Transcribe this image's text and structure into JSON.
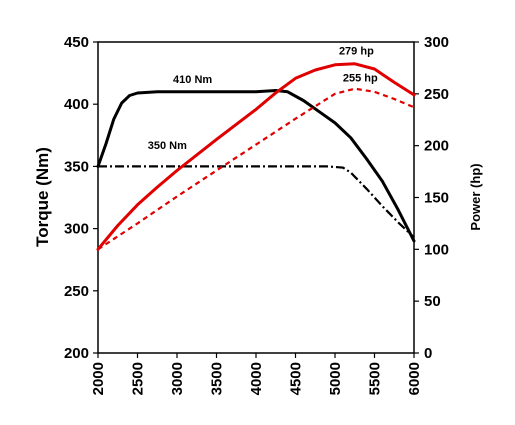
{
  "chart_data": {
    "type": "line",
    "xlabel": "",
    "x_ticks": [
      2000,
      2500,
      3000,
      3500,
      4000,
      4500,
      5000,
      5500,
      6000
    ],
    "xlim": [
      2000,
      6000
    ],
    "left_axis": {
      "label": "Torque (Nm)",
      "lim": [
        200,
        450
      ],
      "ticks": [
        200,
        250,
        300,
        350,
        400,
        450
      ]
    },
    "right_axis": {
      "label": "Power (hp)",
      "lim": [
        0,
        300
      ],
      "ticks": [
        0,
        50,
        100,
        150,
        200,
        250,
        300
      ]
    },
    "grid": false,
    "legend": "none",
    "series": [
      {
        "axis": "left",
        "color": "#000000",
        "style": "solid",
        "points": [
          [
            2000,
            350
          ],
          [
            2100,
            368
          ],
          [
            2200,
            388
          ],
          [
            2300,
            401
          ],
          [
            2400,
            407
          ],
          [
            2500,
            409
          ],
          [
            2750,
            410
          ],
          [
            3000,
            410
          ],
          [
            3500,
            410
          ],
          [
            4000,
            410
          ],
          [
            4250,
            411
          ],
          [
            4400,
            410
          ],
          [
            4600,
            403
          ],
          [
            4800,
            394
          ],
          [
            5000,
            385
          ],
          [
            5200,
            373
          ],
          [
            5400,
            356
          ],
          [
            5600,
            338
          ],
          [
            5800,
            315
          ],
          [
            6000,
            290
          ]
        ]
      },
      {
        "axis": "left",
        "color": "#000000",
        "style": "dashdot",
        "points": [
          [
            2000,
            350
          ],
          [
            2500,
            350
          ],
          [
            3000,
            350
          ],
          [
            3500,
            350
          ],
          [
            4000,
            350
          ],
          [
            4500,
            350
          ],
          [
            4900,
            350
          ],
          [
            5100,
            349
          ],
          [
            5200,
            345
          ],
          [
            5400,
            332
          ],
          [
            5600,
            318
          ],
          [
            5800,
            305
          ],
          [
            6000,
            293
          ]
        ]
      },
      {
        "axis": "right",
        "color": "#e00000",
        "style": "solid",
        "points": [
          [
            2000,
            100
          ],
          [
            2250,
            123
          ],
          [
            2500,
            143
          ],
          [
            2750,
            160
          ],
          [
            3000,
            176
          ],
          [
            3500,
            206
          ],
          [
            4000,
            235
          ],
          [
            4250,
            251
          ],
          [
            4500,
            265
          ],
          [
            4750,
            273
          ],
          [
            5000,
            278
          ],
          [
            5250,
            279
          ],
          [
            5500,
            274
          ],
          [
            5750,
            261
          ],
          [
            6000,
            249
          ]
        ]
      },
      {
        "axis": "right",
        "color": "#e00000",
        "style": "dashed",
        "points": [
          [
            2000,
            100
          ],
          [
            2500,
            125
          ],
          [
            3000,
            151
          ],
          [
            3500,
            176
          ],
          [
            4000,
            201
          ],
          [
            4500,
            226
          ],
          [
            5000,
            250
          ],
          [
            5250,
            255
          ],
          [
            5500,
            252
          ],
          [
            5750,
            245
          ],
          [
            6000,
            237
          ]
        ]
      }
    ],
    "annotations": [
      {
        "text": "410 Nm",
        "x": 2950,
        "y": 417,
        "axis": "left"
      },
      {
        "text": "350 Nm",
        "x": 2630,
        "y": 364,
        "axis": "left"
      },
      {
        "text": "279 hp",
        "x": 5050,
        "y": 288,
        "axis": "right"
      },
      {
        "text": "255 hp",
        "x": 5100,
        "y": 262,
        "axis": "right"
      }
    ]
  }
}
